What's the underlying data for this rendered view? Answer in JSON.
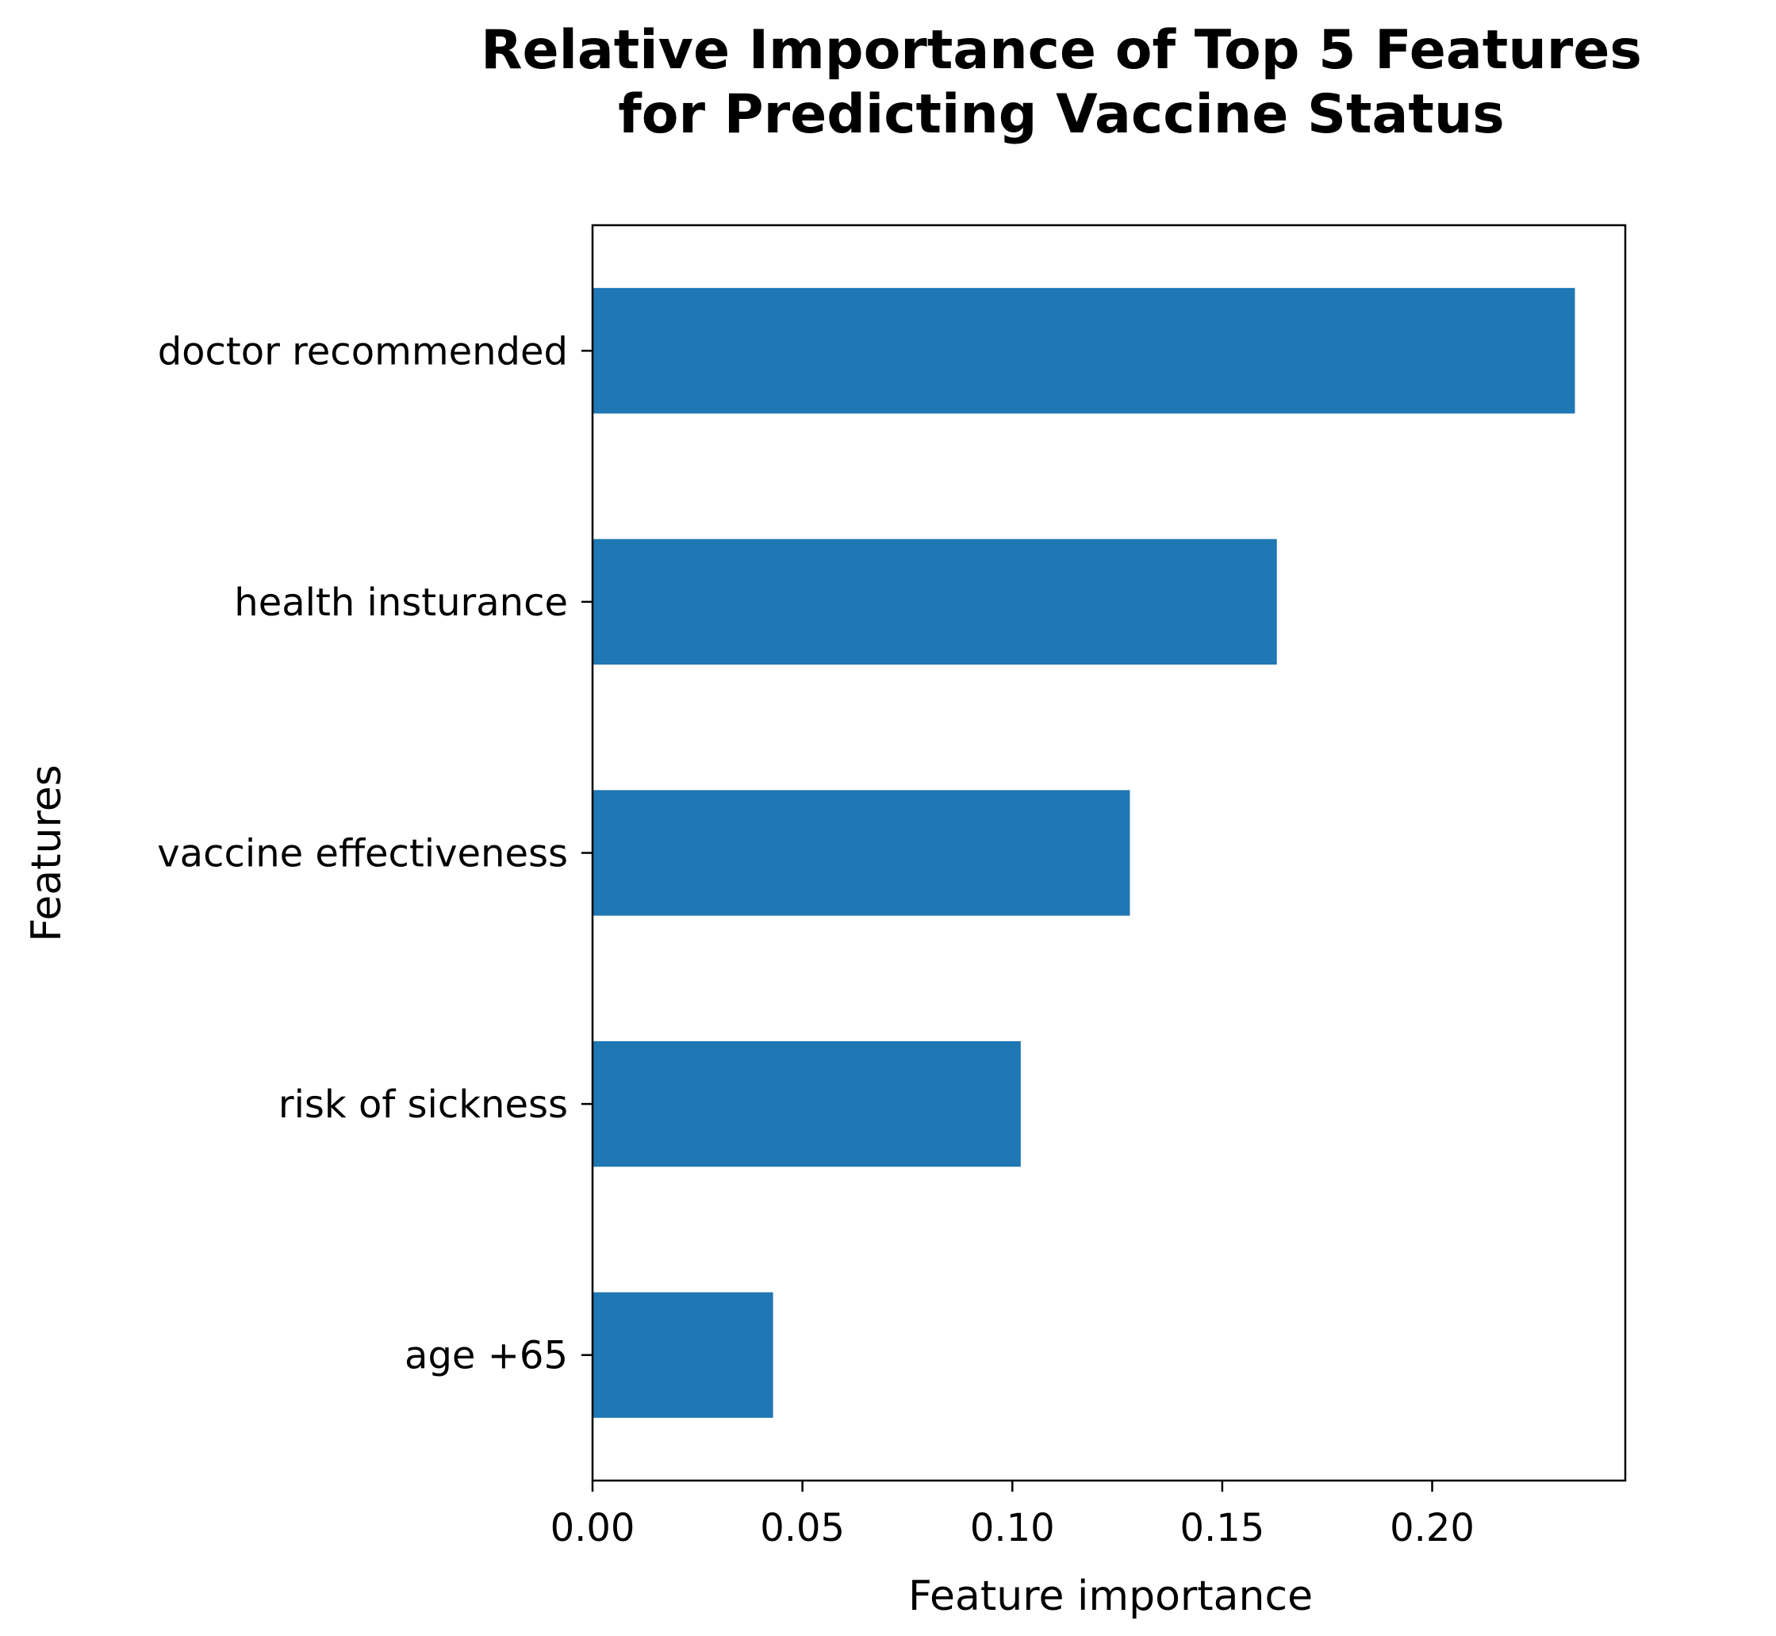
{
  "chart_data": {
    "type": "bar",
    "orientation": "horizontal",
    "title": [
      "Relative Importance of Top 5 Features",
      "for Predicting Vaccine Status"
    ],
    "xlabel": "Feature importance",
    "ylabel": "Features",
    "categories": [
      "doctor recommended",
      "health insturance",
      "vaccine effectiveness",
      "risk of sickness",
      "age +65"
    ],
    "values": [
      0.234,
      0.163,
      0.128,
      0.102,
      0.043
    ],
    "xlim": [
      0,
      0.246
    ],
    "xticks": [
      0.0,
      0.05,
      0.1,
      0.15,
      0.2
    ],
    "xtick_labels": [
      "0.00",
      "0.05",
      "0.10",
      "0.15",
      "0.20"
    ],
    "bar_color": "#1f77b4",
    "grid": false,
    "legend": false
  }
}
